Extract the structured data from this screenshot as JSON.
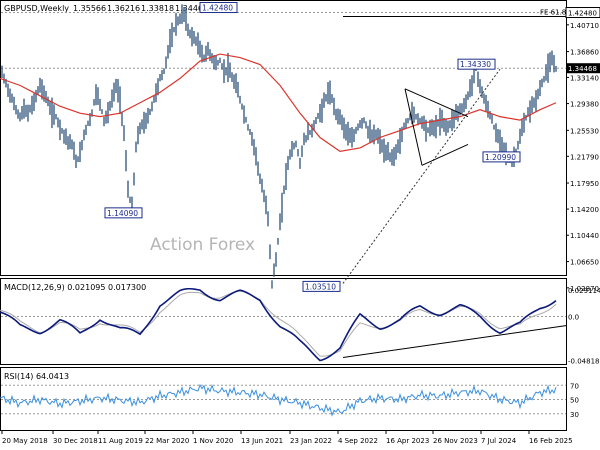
{
  "chart_data": {
    "type": "line",
    "title": "GBPUSD,Weekly",
    "ohlc": {
      "open": "1.35566",
      "high": "1.36216",
      "low": "1.33818",
      "close": "1.34468"
    },
    "watermark": "Action Forex",
    "price_axis": {
      "ylim": [
        1.0515,
        1.4385
      ],
      "ticks": [
        "1.40710",
        "1.36860",
        "1.33140",
        "1.29380",
        "1.25530",
        "1.21790",
        "1.17950",
        "1.14200",
        "1.10440",
        "1.06650",
        "1.02870"
      ],
      "current_price": "1.34468",
      "marked_level": "1.42480",
      "fib_label": "FE 61.8"
    },
    "x_axis": {
      "ticks": [
        "20 May 2018",
        "30 Dec 2018",
        "11 Aug 2019",
        "22 Mar 2020",
        "1 Nov 2020",
        "13 Jun 2021",
        "23 Jan 2022",
        "4 Sep 2022",
        "16 Apr 2023",
        "26 Nov 2023",
        "7 Jul 2024",
        "16 Feb 2025"
      ]
    },
    "price_series": [
      {
        "name": "price",
        "x": [
          0,
          4,
          8,
          12,
          16,
          20,
          24,
          28,
          32,
          36,
          40,
          44,
          48,
          52,
          56,
          60,
          64,
          68,
          72,
          76,
          80,
          84,
          88,
          92,
          96,
          100,
          104,
          108,
          112,
          116,
          120,
          124,
          128,
          132,
          136,
          140,
          144,
          148,
          152,
          156,
          160,
          164,
          168,
          172,
          176,
          180,
          184,
          188,
          192,
          196,
          200,
          204,
          208,
          212,
          216,
          220,
          224,
          228,
          232,
          236,
          240,
          244,
          248,
          252,
          256,
          260,
          264,
          268,
          272,
          276,
          280,
          284,
          288,
          292,
          296,
          300,
          304,
          308,
          312,
          316,
          320,
          324,
          328,
          332,
          336,
          340,
          344,
          348,
          352,
          356,
          360
        ],
        "values": [
          1.345,
          1.33,
          1.315,
          1.3,
          1.285,
          1.275,
          1.285,
          1.28,
          1.29,
          1.305,
          1.32,
          1.31,
          1.295,
          1.28,
          1.275,
          1.26,
          1.25,
          1.24,
          1.235,
          1.21,
          1.22,
          1.25,
          1.265,
          1.28,
          1.31,
          1.295,
          1.27,
          1.28,
          1.3,
          1.32,
          1.3,
          1.25,
          1.17,
          1.141,
          1.23,
          1.26,
          1.265,
          1.275,
          1.29,
          1.31,
          1.33,
          1.34,
          1.37,
          1.39,
          1.41,
          1.415,
          1.4248,
          1.4,
          1.39,
          1.385,
          1.37,
          1.36,
          1.37,
          1.36,
          1.35,
          1.355,
          1.34,
          1.345,
          1.33,
          1.32,
          1.3,
          1.28,
          1.26,
          1.245,
          1.22,
          1.185,
          1.16,
          1.13,
          1.0351,
          1.07,
          1.12,
          1.17,
          1.21,
          1.23,
          1.235,
          1.21,
          1.24,
          1.25,
          1.255,
          1.27,
          1.28,
          1.295,
          1.31,
          1.3,
          1.28,
          1.275,
          1.26,
          1.25,
          1.24,
          1.255,
          1.265
        ]
      },
      {
        "name": "price_2",
        "x": [
          360,
          364,
          368,
          372,
          376,
          380,
          384,
          388,
          392,
          396,
          400,
          404,
          408,
          412,
          416,
          420,
          424,
          428,
          432,
          436,
          440,
          444,
          448,
          452,
          456,
          460,
          464,
          468,
          472,
          476,
          480,
          484,
          488,
          492,
          496,
          500,
          504,
          508,
          512,
          516,
          520,
          524,
          528,
          532,
          536,
          540,
          544,
          548,
          552,
          556
        ],
        "values": [
          1.265,
          1.27,
          1.255,
          1.245,
          1.25,
          1.24,
          1.225,
          1.22,
          1.215,
          1.225,
          1.24,
          1.26,
          1.27,
          1.28,
          1.275,
          1.27,
          1.265,
          1.255,
          1.26,
          1.26,
          1.27,
          1.265,
          1.26,
          1.27,
          1.28,
          1.285,
          1.29,
          1.305,
          1.325,
          1.3433,
          1.32,
          1.3,
          1.285,
          1.27,
          1.25,
          1.24,
          1.23,
          1.215,
          1.2099,
          1.225,
          1.245,
          1.265,
          1.28,
          1.29,
          1.3,
          1.315,
          1.33,
          1.345,
          1.355,
          1.345
        ]
      },
      {
        "name": "moving_average",
        "x": [
          0,
          20,
          40,
          60,
          80,
          100,
          120,
          140,
          160,
          180,
          200,
          220,
          240,
          260,
          280,
          300,
          320,
          340,
          360,
          380,
          400,
          420,
          440,
          460,
          480,
          500,
          520,
          540,
          556
        ],
        "values": [
          1.33,
          1.32,
          1.305,
          1.29,
          1.28,
          1.275,
          1.28,
          1.295,
          1.31,
          1.33,
          1.355,
          1.365,
          1.36,
          1.35,
          1.32,
          1.28,
          1.245,
          1.225,
          1.23,
          1.245,
          1.255,
          1.265,
          1.27,
          1.275,
          1.285,
          1.275,
          1.27,
          1.285,
          1.295
        ]
      }
    ],
    "annotations": [
      "1.42480",
      "1.34330",
      "1.14090",
      "1.20990",
      "1.03510"
    ],
    "macd": {
      "label": "MACD(12,26,9) 0.021095 0.017300",
      "ticks": [
        "0.029114",
        "0.0",
        "-0.048189"
      ],
      "ylim": [
        -0.05,
        0.038
      ],
      "x": [
        0,
        20,
        40,
        60,
        80,
        100,
        120,
        140,
        160,
        180,
        200,
        220,
        240,
        260,
        280,
        300,
        320,
        340,
        360,
        380,
        400,
        420,
        440,
        460,
        480,
        500,
        520,
        540,
        556
      ],
      "series": [
        {
          "name": "MACD",
          "values": [
            0.005,
            -0.012,
            -0.015,
            -0.005,
            -0.02,
            0.0,
            -0.015,
            -0.02,
            0.015,
            0.025,
            0.03,
            0.02,
            0.025,
            0.02,
            -0.01,
            -0.03,
            -0.045,
            -0.035,
            0.0,
            -0.01,
            -0.005,
            0.01,
            0.005,
            0.01,
            0.0,
            -0.015,
            -0.01,
            0.01,
            0.021
          ]
        },
        {
          "name": "Signal",
          "values": [
            0.007,
            -0.008,
            -0.014,
            -0.008,
            -0.016,
            -0.004,
            -0.012,
            -0.018,
            0.008,
            0.02,
            0.027,
            0.023,
            0.024,
            0.021,
            -0.002,
            -0.024,
            -0.04,
            -0.038,
            -0.01,
            -0.009,
            -0.006,
            0.006,
            0.006,
            0.008,
            0.003,
            -0.01,
            -0.012,
            0.004,
            0.017
          ]
        }
      ]
    },
    "rsi": {
      "label": "RSI(14) 64.0413",
      "ticks": [
        "70",
        "50",
        "30"
      ],
      "ylim": [
        10,
        90
      ],
      "x": [
        0,
        20,
        40,
        60,
        80,
        100,
        120,
        140,
        160,
        180,
        200,
        220,
        240,
        260,
        280,
        300,
        320,
        340,
        360,
        380,
        400,
        420,
        440,
        460,
        480,
        500,
        520,
        540,
        556
      ],
      "values": [
        52,
        45,
        50,
        44,
        48,
        52,
        49,
        46,
        55,
        60,
        66,
        62,
        60,
        57,
        50,
        45,
        38,
        32,
        48,
        52,
        50,
        56,
        55,
        60,
        62,
        50,
        45,
        60,
        64
      ]
    }
  }
}
